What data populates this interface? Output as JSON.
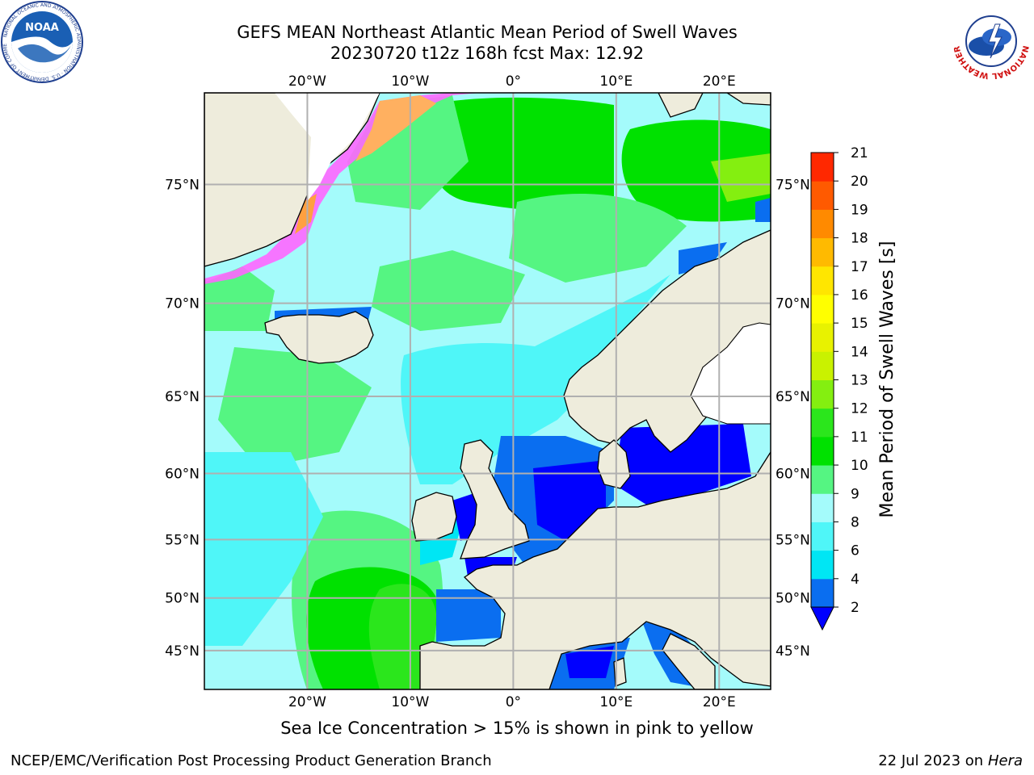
{
  "title_line1": "GEFS MEAN Northeast Atlantic Mean Period of Swell Waves",
  "title_line2": "20230720 t12z 168h fcst   Max: 12.92",
  "logos": {
    "noaa_text": "NOAA",
    "noaa_ring_text": "NATIONAL OCEANIC AND ATMOSPHERIC ADMINISTRATION · U.S. DEPARTMENT OF COMMERCE",
    "nws_ring_text": "NATIONAL WEATHER SERVICE"
  },
  "map": {
    "extent": {
      "lon": [
        -30,
        25
      ],
      "lat": [
        41,
        78
      ]
    },
    "lon_ticks": [
      {
        "lon": -20,
        "label": "20°W"
      },
      {
        "lon": -10,
        "label": "10°W"
      },
      {
        "lon": 0,
        "label": "0°"
      },
      {
        "lon": 10,
        "label": "10°E"
      },
      {
        "lon": 20,
        "label": "20°E"
      }
    ],
    "lat_ticks": [
      {
        "lat": 75,
        "label": "75°N"
      },
      {
        "lat": 70,
        "label": "70°N"
      },
      {
        "lat": 65,
        "label": "65°N"
      },
      {
        "lat": 60,
        "label": "60°N"
      },
      {
        "lat": 55,
        "label": "55°N"
      },
      {
        "lat": 50,
        "label": "50°N"
      },
      {
        "lat": 45,
        "label": "45°N"
      }
    ],
    "land_color": "#eeecdc",
    "grid_color": "#b0b0b0"
  },
  "colorbar": {
    "label": "Mean Period of Swell Waves [s]",
    "ticks": [
      "2",
      "4",
      "6",
      "8",
      "9",
      "10",
      "11",
      "12",
      "13",
      "14",
      "15",
      "16",
      "17",
      "18",
      "19",
      "20",
      "21"
    ],
    "colors": [
      "#0a6ef0",
      "#00e6f4",
      "#4ff6f8",
      "#a4fbfb",
      "#55f582",
      "#00e100",
      "#2be61c",
      "#84ef10",
      "#c9f200",
      "#e8f200",
      "#ffff00",
      "#ffe600",
      "#ffba00",
      "#ff8a00",
      "#ff5a00",
      "#ff2800"
    ],
    "under_color": "#0000ff"
  },
  "ice_note": "Sea Ice Concentration > 15% is shown in pink to yellow",
  "footer_left": "NCEP/EMC/Verification Post Processing Product Generation Branch",
  "footer_right_prefix": "22 Jul 2023 on ",
  "footer_right_machine": "Hera"
}
